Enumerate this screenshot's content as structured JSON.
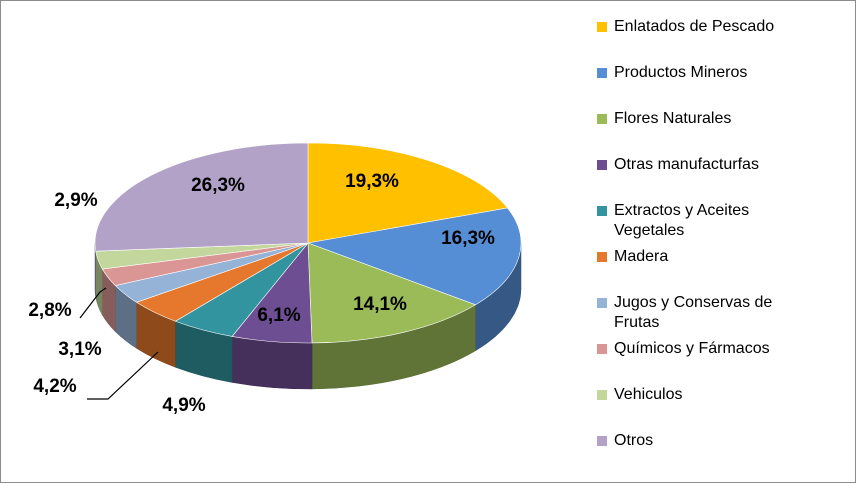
{
  "chart_data": {
    "type": "pie3d",
    "categories": [
      "Enlatados de Pescado",
      "Productos Mineros",
      "Flores Naturales",
      "Otras manufacturfas",
      "Extractos y Aceites Vegetales",
      "Madera",
      "Jugos y Conservas de Frutas",
      "Químicos y Fármacos",
      "Vehiculos",
      "Otros"
    ],
    "values": [
      19.3,
      16.3,
      14.1,
      6.1,
      4.9,
      4.2,
      3.1,
      2.8,
      2.9,
      26.3
    ],
    "value_labels": [
      "19,3%",
      "16,3%",
      "14,1%",
      "6,1%",
      "4,9%",
      "4,2%",
      "3,1%",
      "2,8%",
      "2,9%",
      "26,3%"
    ],
    "colors": [
      "#FFC000",
      "#558ED5",
      "#9BBB59",
      "#6E4E92",
      "#31949E",
      "#E5782C",
      "#95B3D7",
      "#D99694",
      "#C3D69B",
      "#B3A2C7"
    ],
    "legend": "right"
  }
}
